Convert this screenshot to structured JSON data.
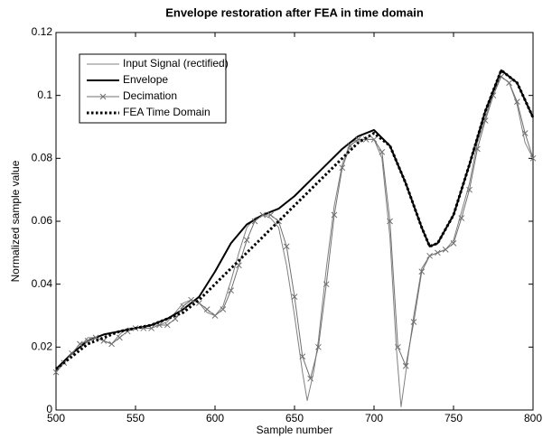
{
  "chart_data": {
    "type": "line",
    "title": "Envelope restoration after FEA in time domain",
    "xlabel": "Sample number",
    "ylabel": "Normalized sample value",
    "xlim": [
      500,
      800
    ],
    "ylim": [
      0,
      0.12
    ],
    "xticks": [
      500,
      550,
      600,
      650,
      700,
      750,
      800
    ],
    "yticks": [
      0,
      0.02,
      0.04,
      0.06,
      0.08,
      0.1,
      0.12
    ],
    "legend": "upper-left",
    "series": [
      {
        "name": "Input Signal (rectified)",
        "color": "#808080",
        "width": 1,
        "linestyle": "solid",
        "x": [
          500,
          505,
          510,
          515,
          520,
          525,
          530,
          535,
          540,
          545,
          550,
          555,
          560,
          565,
          570,
          575,
          580,
          585,
          590,
          595,
          600,
          605,
          610,
          615,
          620,
          625,
          630,
          635,
          640,
          645,
          650,
          655,
          658,
          662,
          665,
          670,
          675,
          680,
          685,
          690,
          695,
          700,
          705,
          710,
          714,
          717,
          720,
          725,
          730,
          735,
          740,
          745,
          750,
          755,
          760,
          765,
          770,
          775,
          780,
          785,
          790,
          795,
          800
        ],
        "values": [
          0.012,
          0.015,
          0.018,
          0.02,
          0.023,
          0.023,
          0.022,
          0.021,
          0.024,
          0.026,
          0.026,
          0.026,
          0.027,
          0.027,
          0.028,
          0.031,
          0.034,
          0.035,
          0.034,
          0.031,
          0.03,
          0.033,
          0.041,
          0.05,
          0.058,
          0.061,
          0.062,
          0.061,
          0.058,
          0.046,
          0.03,
          0.012,
          0.003,
          0.012,
          0.022,
          0.045,
          0.065,
          0.078,
          0.085,
          0.086,
          0.086,
          0.086,
          0.08,
          0.055,
          0.02,
          0.001,
          0.012,
          0.03,
          0.045,
          0.049,
          0.05,
          0.051,
          0.054,
          0.063,
          0.072,
          0.085,
          0.093,
          0.101,
          0.106,
          0.104,
          0.097,
          0.085,
          0.08
        ]
      },
      {
        "name": "Envelope",
        "color": "#000000",
        "width": 2,
        "linestyle": "solid",
        "x": [
          500,
          510,
          520,
          530,
          540,
          550,
          560,
          570,
          580,
          590,
          600,
          610,
          620,
          630,
          640,
          650,
          660,
          670,
          680,
          690,
          700,
          710,
          720,
          730,
          735,
          740,
          750,
          760,
          770,
          780,
          790,
          800
        ],
        "values": [
          0.013,
          0.018,
          0.022,
          0.024,
          0.025,
          0.026,
          0.027,
          0.029,
          0.032,
          0.036,
          0.044,
          0.053,
          0.059,
          0.062,
          0.064,
          0.068,
          0.073,
          0.078,
          0.083,
          0.087,
          0.089,
          0.084,
          0.072,
          0.058,
          0.052,
          0.053,
          0.062,
          0.078,
          0.095,
          0.108,
          0.104,
          0.093
        ]
      },
      {
        "name": "Decimation",
        "color": "#707070",
        "width": 1,
        "linestyle": "solid",
        "marker": "x",
        "x": [
          500,
          505,
          510,
          515,
          520,
          525,
          530,
          535,
          540,
          545,
          550,
          555,
          560,
          565,
          570,
          575,
          580,
          585,
          590,
          595,
          600,
          605,
          610,
          615,
          620,
          625,
          630,
          635,
          640,
          645,
          650,
          655,
          660,
          665,
          670,
          675,
          680,
          685,
          690,
          695,
          700,
          705,
          710,
          715,
          720,
          725,
          730,
          735,
          740,
          745,
          750,
          755,
          760,
          765,
          770,
          775,
          780,
          785,
          790,
          795,
          800
        ],
        "values": [
          0.012,
          0.015,
          0.018,
          0.021,
          0.022,
          0.023,
          0.022,
          0.021,
          0.023,
          0.025,
          0.026,
          0.026,
          0.026,
          0.027,
          0.027,
          0.029,
          0.033,
          0.035,
          0.034,
          0.032,
          0.03,
          0.032,
          0.038,
          0.046,
          0.054,
          0.06,
          0.062,
          0.062,
          0.06,
          0.052,
          0.036,
          0.017,
          0.01,
          0.02,
          0.04,
          0.062,
          0.077,
          0.084,
          0.086,
          0.086,
          0.086,
          0.082,
          0.06,
          0.02,
          0.014,
          0.028,
          0.044,
          0.049,
          0.05,
          0.051,
          0.053,
          0.061,
          0.07,
          0.083,
          0.092,
          0.1,
          0.106,
          0.104,
          0.098,
          0.088,
          0.08
        ]
      },
      {
        "name": "FEA Time Domain",
        "color": "#000000",
        "width": 3,
        "linestyle": "dotted",
        "x": [
          500,
          510,
          520,
          530,
          540,
          550,
          560,
          570,
          580,
          590,
          600,
          610,
          620,
          630,
          640,
          650,
          660,
          670,
          680,
          690,
          700,
          710,
          720,
          730,
          735,
          740,
          750,
          760,
          770,
          780,
          790,
          800
        ],
        "values": [
          0.013,
          0.017,
          0.021,
          0.023,
          0.025,
          0.026,
          0.027,
          0.029,
          0.031,
          0.035,
          0.04,
          0.045,
          0.05,
          0.055,
          0.06,
          0.065,
          0.07,
          0.075,
          0.08,
          0.085,
          0.088,
          0.084,
          0.072,
          0.058,
          0.052,
          0.053,
          0.062,
          0.078,
          0.095,
          0.108,
          0.104,
          0.093
        ]
      }
    ]
  }
}
